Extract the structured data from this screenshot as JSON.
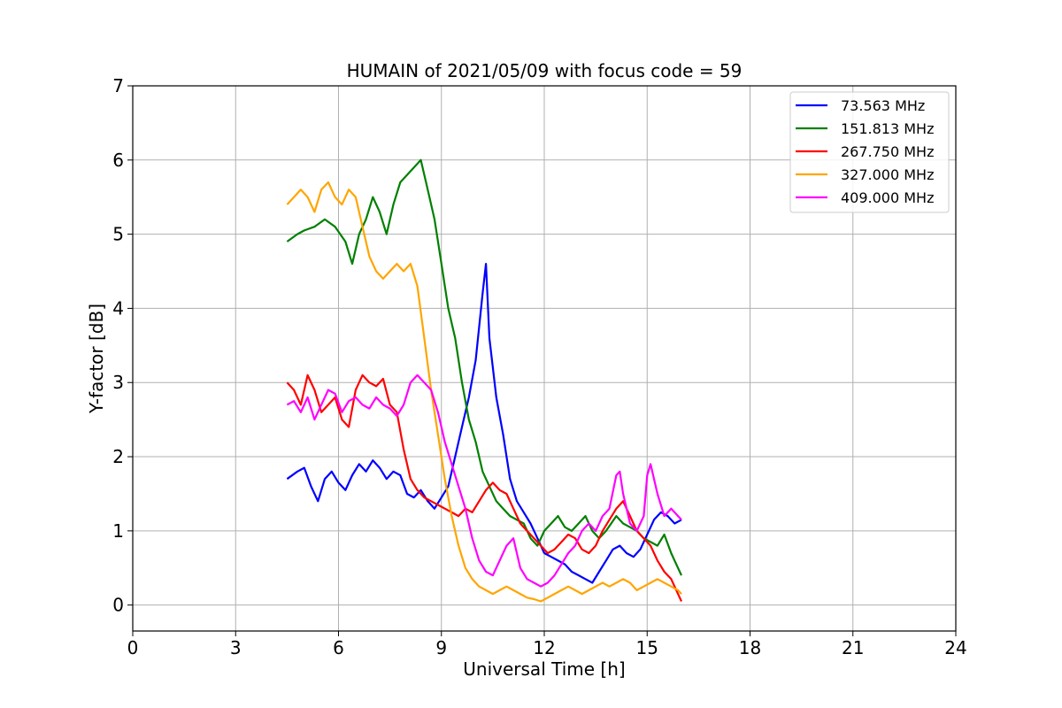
{
  "chart_data": {
    "type": "line",
    "title": "HUMAIN of 2021/05/09 with focus code = 59",
    "xlabel": "Universal Time [h]",
    "ylabel": "Y-factor [dB]",
    "xlim": [
      0,
      24
    ],
    "ylim": [
      -0.35,
      7
    ],
    "xticks": [
      "0",
      "3",
      "6",
      "9",
      "12",
      "15",
      "18",
      "21",
      "24"
    ],
    "yticks": [
      "0",
      "1",
      "2",
      "3",
      "4",
      "5",
      "6",
      "7"
    ],
    "grid": true,
    "legend_position": "top-right",
    "series": [
      {
        "name": " 73.563 MHz",
        "color": "#0000ff",
        "x": [
          4.5,
          4.8,
          5.0,
          5.2,
          5.4,
          5.6,
          5.8,
          6.0,
          6.2,
          6.4,
          6.6,
          6.8,
          7.0,
          7.2,
          7.4,
          7.6,
          7.8,
          8.0,
          8.2,
          8.4,
          8.6,
          8.8,
          9.0,
          9.2,
          9.4,
          9.6,
          9.8,
          10.0,
          10.2,
          10.3,
          10.4,
          10.6,
          10.8,
          11.0,
          11.2,
          11.4,
          11.6,
          11.8,
          12.0,
          12.2,
          12.4,
          12.6,
          12.8,
          13.0,
          13.2,
          13.4,
          13.6,
          13.8,
          14.0,
          14.2,
          14.4,
          14.6,
          14.8,
          15.0,
          15.2,
          15.4,
          15.6,
          15.8,
          16.0
        ],
        "y": [
          1.7,
          1.8,
          1.85,
          1.6,
          1.4,
          1.7,
          1.8,
          1.65,
          1.55,
          1.75,
          1.9,
          1.8,
          1.95,
          1.85,
          1.7,
          1.8,
          1.75,
          1.5,
          1.45,
          1.55,
          1.4,
          1.3,
          1.45,
          1.6,
          2.0,
          2.4,
          2.8,
          3.3,
          4.2,
          4.6,
          3.6,
          2.8,
          2.3,
          1.7,
          1.4,
          1.25,
          1.1,
          0.9,
          0.7,
          0.65,
          0.6,
          0.55,
          0.45,
          0.4,
          0.35,
          0.3,
          0.45,
          0.6,
          0.75,
          0.8,
          0.7,
          0.65,
          0.75,
          0.95,
          1.15,
          1.25,
          1.2,
          1.1,
          1.15
        ]
      },
      {
        "name": "151.813 MHz",
        "color": "#008000",
        "x": [
          4.5,
          4.8,
          5.0,
          5.3,
          5.6,
          5.9,
          6.2,
          6.4,
          6.6,
          6.8,
          7.0,
          7.2,
          7.4,
          7.6,
          7.8,
          8.0,
          8.2,
          8.4,
          8.6,
          8.8,
          9.0,
          9.2,
          9.4,
          9.6,
          9.8,
          10.0,
          10.2,
          10.4,
          10.6,
          10.8,
          11.0,
          11.2,
          11.4,
          11.6,
          11.8,
          12.0,
          12.2,
          12.4,
          12.6,
          12.8,
          13.0,
          13.2,
          13.4,
          13.6,
          13.8,
          13.95,
          14.1,
          14.3,
          14.5,
          14.7,
          14.9,
          15.1,
          15.3,
          15.5,
          15.7,
          15.9,
          16.0
        ],
        "y": [
          4.9,
          5.0,
          5.05,
          5.1,
          5.2,
          5.1,
          4.9,
          4.6,
          5.0,
          5.2,
          5.5,
          5.3,
          5.0,
          5.4,
          5.7,
          5.8,
          5.9,
          6.0,
          5.6,
          5.2,
          4.6,
          4.0,
          3.6,
          3.0,
          2.5,
          2.2,
          1.8,
          1.6,
          1.4,
          1.3,
          1.2,
          1.15,
          1.1,
          0.9,
          0.8,
          1.0,
          1.1,
          1.2,
          1.05,
          1.0,
          1.1,
          1.2,
          1.0,
          0.9,
          1.0,
          1.1,
          1.2,
          1.1,
          1.05,
          1.0,
          0.9,
          0.85,
          0.8,
          0.95,
          0.7,
          0.5,
          0.4
        ]
      },
      {
        "name": "267.750 MHz",
        "color": "#ff0000",
        "x": [
          4.5,
          4.7,
          4.9,
          5.1,
          5.3,
          5.5,
          5.7,
          5.9,
          6.1,
          6.3,
          6.5,
          6.7,
          6.9,
          7.1,
          7.3,
          7.5,
          7.7,
          7.9,
          8.1,
          8.3,
          8.5,
          8.7,
          8.9,
          9.1,
          9.3,
          9.5,
          9.7,
          9.9,
          10.1,
          10.3,
          10.5,
          10.7,
          10.9,
          11.1,
          11.3,
          11.5,
          11.7,
          11.9,
          12.1,
          12.3,
          12.5,
          12.7,
          12.9,
          13.1,
          13.3,
          13.5,
          13.7,
          13.9,
          14.1,
          14.3,
          14.5,
          14.7,
          14.9,
          15.1,
          15.3,
          15.5,
          15.7,
          15.9,
          16.0
        ],
        "y": [
          3.0,
          2.9,
          2.7,
          3.1,
          2.9,
          2.6,
          2.7,
          2.8,
          2.5,
          2.4,
          2.9,
          3.1,
          3.0,
          2.95,
          3.05,
          2.7,
          2.6,
          2.1,
          1.7,
          1.55,
          1.45,
          1.4,
          1.35,
          1.3,
          1.25,
          1.2,
          1.3,
          1.25,
          1.4,
          1.55,
          1.65,
          1.55,
          1.5,
          1.3,
          1.1,
          1.0,
          0.9,
          0.8,
          0.7,
          0.75,
          0.85,
          0.95,
          0.9,
          0.75,
          0.7,
          0.8,
          1.0,
          1.15,
          1.3,
          1.4,
          1.2,
          1.0,
          0.9,
          0.8,
          0.6,
          0.45,
          0.35,
          0.15,
          0.05
        ]
      },
      {
        "name": "327.000 MHz",
        "color": "#ffa500",
        "x": [
          4.5,
          4.7,
          4.9,
          5.1,
          5.3,
          5.5,
          5.7,
          5.9,
          6.1,
          6.3,
          6.5,
          6.7,
          6.9,
          7.1,
          7.3,
          7.5,
          7.7,
          7.9,
          8.1,
          8.3,
          8.5,
          8.7,
          8.9,
          9.1,
          9.3,
          9.5,
          9.7,
          9.9,
          10.1,
          10.3,
          10.5,
          10.7,
          10.9,
          11.1,
          11.3,
          11.5,
          11.7,
          11.9,
          12.1,
          12.3,
          12.5,
          12.7,
          12.9,
          13.1,
          13.3,
          13.5,
          13.7,
          13.9,
          14.1,
          14.3,
          14.5,
          14.7,
          14.9,
          15.1,
          15.3,
          15.5,
          15.7,
          15.9,
          16.0
        ],
        "y": [
          5.4,
          5.5,
          5.6,
          5.5,
          5.3,
          5.6,
          5.7,
          5.5,
          5.4,
          5.6,
          5.5,
          5.1,
          4.7,
          4.5,
          4.4,
          4.5,
          4.6,
          4.5,
          4.6,
          4.3,
          3.6,
          2.9,
          2.3,
          1.7,
          1.2,
          0.8,
          0.5,
          0.35,
          0.25,
          0.2,
          0.15,
          0.2,
          0.25,
          0.2,
          0.15,
          0.1,
          0.08,
          0.05,
          0.1,
          0.15,
          0.2,
          0.25,
          0.2,
          0.15,
          0.2,
          0.25,
          0.3,
          0.25,
          0.3,
          0.35,
          0.3,
          0.2,
          0.25,
          0.3,
          0.35,
          0.3,
          0.25,
          0.2,
          0.15
        ]
      },
      {
        "name": "409.000 MHz",
        "color": "#ff00ff",
        "x": [
          4.5,
          4.7,
          4.9,
          5.1,
          5.3,
          5.5,
          5.7,
          5.9,
          6.1,
          6.3,
          6.5,
          6.7,
          6.9,
          7.1,
          7.3,
          7.5,
          7.7,
          7.9,
          8.1,
          8.3,
          8.5,
          8.7,
          8.9,
          9.1,
          9.3,
          9.5,
          9.7,
          9.9,
          10.1,
          10.3,
          10.5,
          10.7,
          10.9,
          11.1,
          11.3,
          11.5,
          11.7,
          11.9,
          12.1,
          12.3,
          12.5,
          12.7,
          12.9,
          13.1,
          13.3,
          13.5,
          13.7,
          13.9,
          14.1,
          14.2,
          14.3,
          14.5,
          14.7,
          14.9,
          15.0,
          15.1,
          15.3,
          15.5,
          15.7,
          15.9,
          16.0
        ],
        "y": [
          2.7,
          2.75,
          2.6,
          2.8,
          2.5,
          2.7,
          2.9,
          2.85,
          2.6,
          2.75,
          2.8,
          2.7,
          2.65,
          2.8,
          2.7,
          2.65,
          2.55,
          2.7,
          3.0,
          3.1,
          3.0,
          2.9,
          2.6,
          2.2,
          1.9,
          1.6,
          1.3,
          0.9,
          0.6,
          0.45,
          0.4,
          0.6,
          0.8,
          0.9,
          0.5,
          0.35,
          0.3,
          0.25,
          0.3,
          0.4,
          0.55,
          0.7,
          0.8,
          1.0,
          1.1,
          1.0,
          1.2,
          1.3,
          1.75,
          1.8,
          1.5,
          1.1,
          1.0,
          1.2,
          1.75,
          1.9,
          1.5,
          1.2,
          1.3,
          1.2,
          1.15
        ]
      }
    ]
  }
}
